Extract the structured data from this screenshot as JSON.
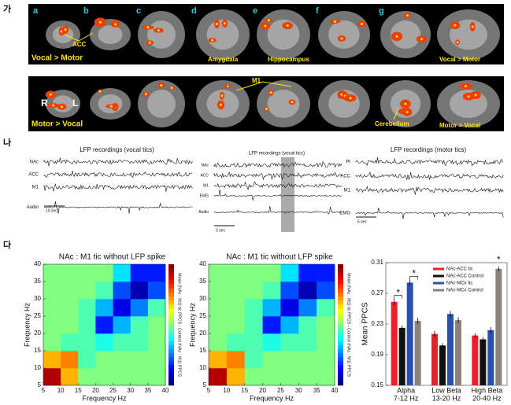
{
  "sections": [
    "가",
    "나",
    "다"
  ],
  "imaging": {
    "row1": {
      "panel_letters": [
        "a",
        "b",
        "c",
        "d",
        "e",
        "f",
        "g"
      ],
      "labels": [
        "ACC",
        "Amygdala",
        "Hippocampus"
      ],
      "contrast": "Vocal > Motor"
    },
    "row2": {
      "orientation": [
        "R",
        "L"
      ],
      "labels": [
        "M1",
        "Cerebellum"
      ],
      "contrast": "Motor > Vocal"
    }
  },
  "lfp": [
    {
      "title": "LFP recordings (vocal tics)",
      "channels": [
        "NAc",
        "ACC",
        "M1",
        "Audio"
      ],
      "scale": "10 sec"
    },
    {
      "title": "LFP recordings (vocal tics)",
      "channels": [
        "NAc",
        "ACC",
        "M1",
        "EMG",
        "Audio"
      ],
      "scale": "3 sec"
    },
    {
      "title": "LFP recordings (motor tics)",
      "channels": [
        "Pt",
        "ACC",
        "M1",
        "EMG"
      ],
      "scale": "5 sec"
    }
  ],
  "chart_data": [
    {
      "type": "heatmap",
      "title": "NAc : M1 tic without LFP spike",
      "x_label": "Frequency Hz",
      "y_label": "Frequency Hz",
      "colorbar_label": "Mean (NAc : M1) tic PPCS - Control (NAc : M1) PPCS",
      "x_bins": [
        5,
        10,
        15,
        20,
        25,
        30,
        35,
        40
      ],
      "y_bins": [
        5,
        10,
        15,
        20,
        25,
        30,
        35,
        40
      ],
      "values": [
        [
          0.95,
          0.7,
          0.5,
          0.5,
          0.5,
          0.5,
          0.5
        ],
        [
          0.7,
          0.75,
          0.45,
          0.5,
          0.5,
          0.5,
          0.5
        ],
        [
          0.5,
          0.45,
          0.45,
          0.4,
          0.45,
          0.45,
          0.5
        ],
        [
          0.5,
          0.5,
          0.45,
          0.15,
          0.3,
          0.45,
          0.5
        ],
        [
          0.5,
          0.5,
          0.45,
          0.3,
          0.1,
          0.25,
          0.45
        ],
        [
          0.5,
          0.5,
          0.5,
          0.45,
          0.2,
          0.05,
          0.2
        ],
        [
          0.5,
          0.5,
          0.5,
          0.5,
          0.35,
          0.15,
          0.15
        ]
      ],
      "xlim": [
        5,
        40
      ],
      "ylim": [
        5,
        40
      ],
      "xticks": [
        5,
        10,
        15,
        20,
        25,
        30,
        35,
        40
      ],
      "yticks": [
        5,
        10,
        15,
        20,
        25,
        30,
        35,
        40
      ]
    },
    {
      "type": "heatmap",
      "title": "NAc : M1 tic without LFP spike",
      "x_label": "Frequency Hz",
      "y_label": "Frequency Hz",
      "colorbar_label": "Mean (NAc : M1) tic PPCS - Control (NAc : M1) PPCS",
      "x_bins": [
        5,
        10,
        15,
        20,
        25,
        30,
        35,
        40
      ],
      "y_bins": [
        5,
        10,
        15,
        20,
        25,
        30,
        35,
        40
      ],
      "values": [
        [
          0.95,
          0.7,
          0.5,
          0.5,
          0.5,
          0.5,
          0.5
        ],
        [
          0.7,
          0.75,
          0.45,
          0.5,
          0.5,
          0.5,
          0.5
        ],
        [
          0.5,
          0.45,
          0.45,
          0.4,
          0.45,
          0.45,
          0.5
        ],
        [
          0.5,
          0.5,
          0.45,
          0.15,
          0.3,
          0.45,
          0.5
        ],
        [
          0.5,
          0.5,
          0.45,
          0.3,
          0.1,
          0.25,
          0.45
        ],
        [
          0.5,
          0.5,
          0.5,
          0.45,
          0.2,
          0.05,
          0.2
        ],
        [
          0.5,
          0.5,
          0.5,
          0.5,
          0.35,
          0.15,
          0.15
        ]
      ],
      "xlim": [
        5,
        40
      ],
      "ylim": [
        5,
        40
      ],
      "xticks": [
        5,
        10,
        15,
        20,
        25,
        30,
        35,
        40
      ],
      "yticks": [
        5,
        10,
        15,
        20,
        25,
        30,
        35,
        40
      ]
    },
    {
      "type": "bar",
      "y_label": "Mean PPCS",
      "categories": [
        "Alpha",
        "Low Beta",
        "High Beta"
      ],
      "category_ranges": [
        "7-12 Hz",
        "13-20 Hz",
        "20-40 Hz"
      ],
      "series": [
        {
          "name": "NAc-ACC tic",
          "color": "#e8202a",
          "values": [
            0.259,
            0.217,
            0.215
          ],
          "errors": [
            0.004,
            0.004,
            0.003
          ]
        },
        {
          "name": "NAc-ACC Control",
          "color": "#111111",
          "values": [
            0.225,
            0.202,
            0.21
          ],
          "errors": [
            0.003,
            0.003,
            0.003
          ]
        },
        {
          "name": "NAc-MCx tic",
          "color": "#2a4fb0",
          "values": [
            0.284,
            0.243,
            0.222
          ],
          "errors": [
            0.004,
            0.004,
            0.004
          ]
        },
        {
          "name": "NAc-MCx Control",
          "color": "#8c8279",
          "values": [
            0.234,
            0.235,
            0.302
          ],
          "errors": [
            0.004,
            0.004,
            0.003
          ]
        }
      ],
      "ylim": [
        0.15,
        0.31
      ],
      "yticks": [
        0.15,
        0.19,
        0.23,
        0.27,
        0.31
      ],
      "annotations": [
        "*",
        "*",
        "*"
      ]
    }
  ]
}
